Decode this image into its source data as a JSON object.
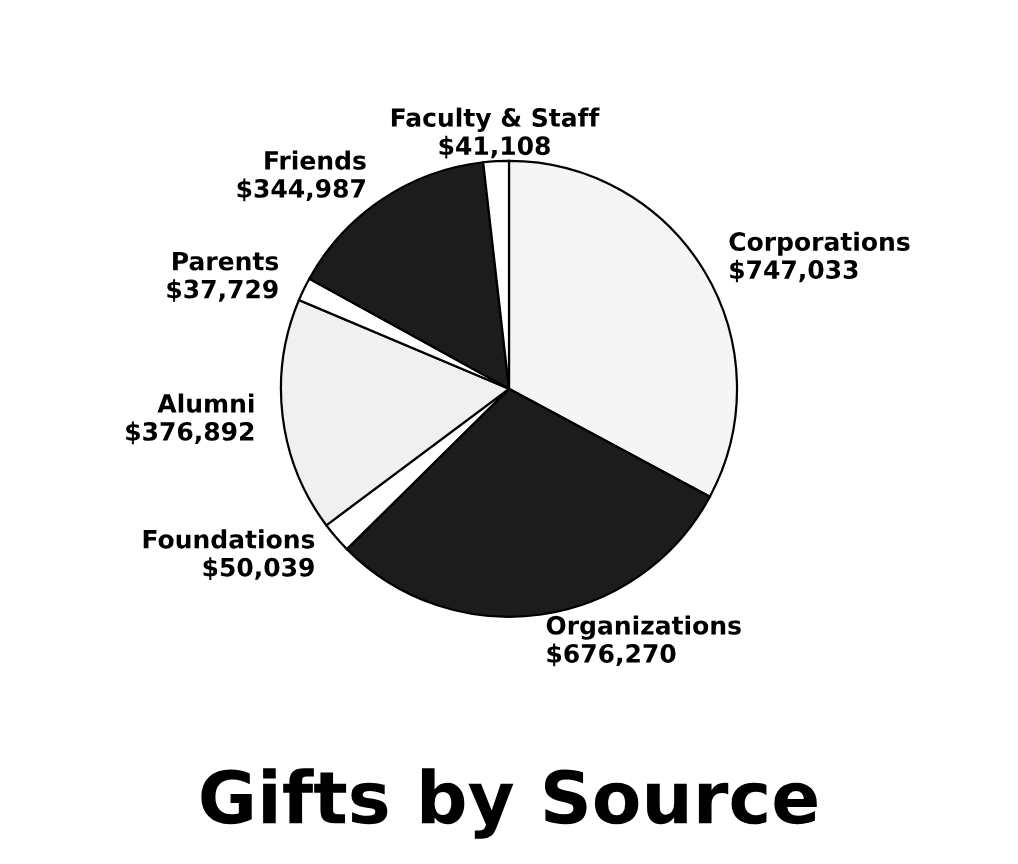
{
  "chart_data": {
    "type": "pie",
    "title": "Gifts by Source",
    "categories": [
      "Corporations",
      "Organizations",
      "Foundations",
      "Alumni",
      "Parents",
      "Friends",
      "Faculty & Staff"
    ],
    "values": [
      747033,
      676270,
      50039,
      376892,
      37729,
      344987,
      41108
    ],
    "value_labels": [
      "$747,033",
      "$676,270",
      "$50,039",
      "$376,892",
      "$37,729",
      "$344,987",
      "$41,108"
    ],
    "colors": [
      "#f5f5f5",
      "#1c1c1c",
      "#ffffff",
      "#f0f0f0",
      "#ffffff",
      "#1c1c1c",
      "#ffffff"
    ],
    "legend": false
  }
}
